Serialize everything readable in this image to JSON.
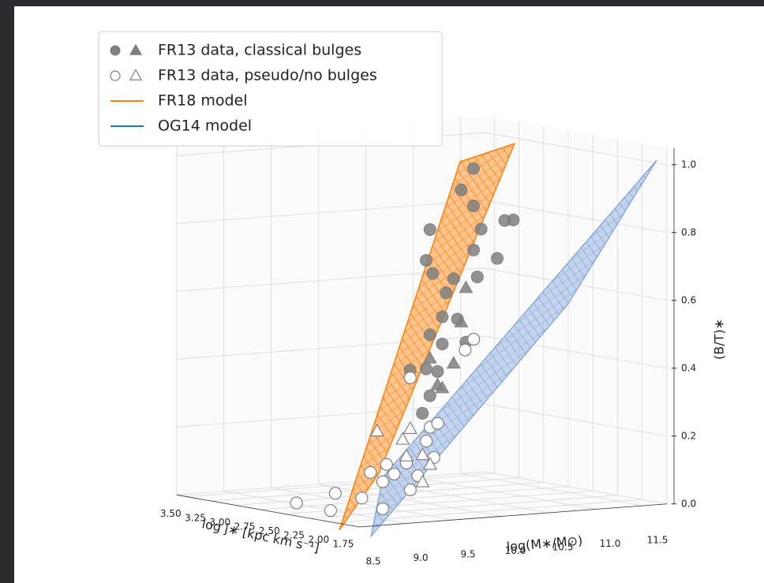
{
  "chart_data": {
    "type": "scatter3d",
    "xlabel": "log(M∗/M⊙)",
    "ylabel": "log j∗ [kpc km s⁻¹]",
    "zlabel": "(B/T)∗",
    "xlim": [
      8.5,
      11.75
    ],
    "ylim": [
      1.75,
      3.6
    ],
    "zlim": [
      0,
      1.05
    ],
    "xticks": [
      8.5,
      {
        "value": 9,
        "label": "9.0"
      },
      9.5,
      {
        "value": 10,
        "label": "10.0"
      },
      10.5,
      {
        "value": 11,
        "label": "11.0"
      },
      11.5
    ],
    "yticks": [
      1.75,
      {
        "value": 2,
        "label": "2.00"
      },
      2.25,
      {
        "value": 2.5,
        "label": "2.50"
      },
      2.75,
      {
        "value": 3,
        "label": "3.00"
      },
      3.25,
      {
        "value": 3.5,
        "label": "3.50"
      }
    ],
    "zticks": [
      {
        "value": 0,
        "label": "0.0"
      },
      {
        "value": 0.2,
        "label": "0.2"
      },
      {
        "value": 0.4,
        "label": "0.4"
      },
      {
        "value": 0.6,
        "label": "0.6"
      },
      {
        "value": 0.8,
        "label": "0.8"
      },
      {
        "value": 1,
        "label": "1.0"
      }
    ],
    "grid": true,
    "legend": "upper left",
    "groups": [
      {
        "name": "FR13 data, classical bulges",
        "color": "#7f7f7f",
        "filled": true,
        "circles": {
          "x": [
            11.01,
            10.55,
            10.51,
            10.58,
            10.88,
            11.01,
            11.09,
            11.34,
            11.43,
            11.01,
            11.26,
            10.8,
            11.05,
            10.72,
            10.68,
            10.84,
            10.55,
            10.68,
            10.51,
            10.63,
            10.55,
            10.47,
            10.93,
            10.34
          ],
          "y": [
            3,
            3,
            3,
            3,
            3,
            3,
            3,
            3,
            3,
            3,
            3,
            3,
            3,
            3,
            3,
            3,
            3,
            3,
            3,
            3,
            3,
            3,
            3,
            3
          ],
          "z": [
            0.94,
            0.77,
            0.68,
            0.64,
            0.88,
            0.83,
            0.76,
            0.78,
            0.78,
            0.7,
            0.67,
            0.62,
            0.62,
            0.58,
            0.51,
            0.5,
            0.46,
            0.43,
            0.36,
            0.35,
            0.28,
            0.23,
            0.43,
            0.36
          ]
        },
        "triangles": {
          "x": [
            10.93,
            10.88,
            10.63,
            10.68,
            10.55,
            10.8
          ],
          "y": [
            3,
            3,
            3,
            3,
            3,
            3
          ],
          "z": [
            0.59,
            0.49,
            0.31,
            0.3,
            0.39,
            0.37
          ]
        }
      },
      {
        "name": "FR13 data, pseudo/no bulges",
        "color": "#7f7f7f",
        "filled": false,
        "circles": {
          "x": [
            8.62,
            9.03,
            8.98,
            9.31,
            9.3,
            9.97,
            9.88,
            9.51,
            9.59,
            9.05,
            9.13,
            9.26,
            9.38,
            9.01,
            9.3,
            9.01,
            9.55,
            9.47,
            8.88
          ],
          "y": [
            2.5,
            2.5,
            2.5,
            2.5,
            2,
            2,
            2,
            2,
            2,
            2,
            2,
            2,
            2,
            2,
            2,
            2,
            2,
            2,
            2
          ],
          "z": [
            0.03,
            0.05,
            0,
            0.03,
            0.41,
            0.51,
            0.48,
            0.26,
            0.27,
            0.16,
            0.13,
            0.16,
            0.12,
            0.11,
            0.08,
            0.03,
            0.17,
            0.22,
            0.14
          ]
        },
        "triangles": {
          "x": [
            8.95,
            9.3,
            9.26,
            9.43,
            9.51,
            9.43,
            9.22
          ],
          "y": [
            2,
            2,
            2,
            2,
            2,
            2,
            2
          ],
          "z": [
            0.26,
            0.26,
            0.18,
            0.18,
            0.15,
            0.1,
            0.23
          ]
        }
      }
    ],
    "models": [
      {
        "name": "FR18 model",
        "color": "#ff7f0e"
      },
      {
        "name": "OG14 model",
        "color": "#1f77b4"
      }
    ]
  }
}
